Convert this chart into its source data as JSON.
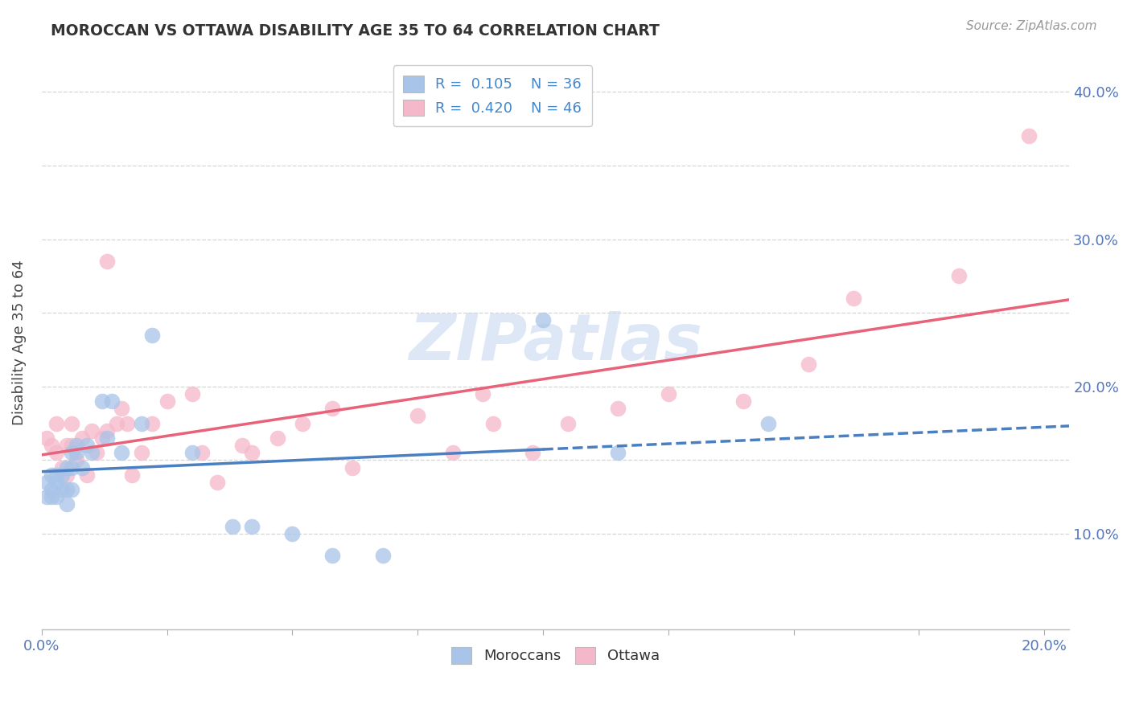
{
  "title": "MOROCCAN VS OTTAWA DISABILITY AGE 35 TO 64 CORRELATION CHART",
  "source": "Source: ZipAtlas.com",
  "ylabel": "Disability Age 35 to 64",
  "xlim": [
    0.0,
    0.205
  ],
  "ylim": [
    0.035,
    0.425
  ],
  "moroccan_R": 0.105,
  "moroccan_N": 36,
  "ottawa_R": 0.42,
  "ottawa_N": 46,
  "moroccan_color": "#a8c4e8",
  "ottawa_color": "#f5b8ca",
  "moroccan_line_color": "#4a7fc1",
  "ottawa_line_color": "#e8637a",
  "watermark_color": "#c8d8ef",
  "background_color": "#ffffff",
  "grid_color": "#d5d5d5",
  "axis_label_color": "#5577bb",
  "title_color": "#333333",
  "moroccan_x": [
    0.001,
    0.001,
    0.002,
    0.002,
    0.002,
    0.003,
    0.003,
    0.003,
    0.004,
    0.004,
    0.005,
    0.005,
    0.005,
    0.006,
    0.006,
    0.006,
    0.007,
    0.007,
    0.008,
    0.009,
    0.01,
    0.012,
    0.013,
    0.014,
    0.016,
    0.02,
    0.022,
    0.03,
    0.038,
    0.042,
    0.05,
    0.058,
    0.068,
    0.1,
    0.115,
    0.145
  ],
  "moroccan_y": [
    0.125,
    0.135,
    0.125,
    0.13,
    0.14,
    0.125,
    0.135,
    0.14,
    0.13,
    0.14,
    0.12,
    0.13,
    0.145,
    0.13,
    0.145,
    0.155,
    0.155,
    0.16,
    0.145,
    0.16,
    0.155,
    0.19,
    0.165,
    0.19,
    0.155,
    0.175,
    0.235,
    0.155,
    0.105,
    0.105,
    0.1,
    0.085,
    0.085,
    0.245,
    0.155,
    0.175
  ],
  "ottawa_x": [
    0.001,
    0.002,
    0.003,
    0.003,
    0.004,
    0.005,
    0.005,
    0.006,
    0.006,
    0.007,
    0.008,
    0.009,
    0.01,
    0.011,
    0.012,
    0.013,
    0.013,
    0.015,
    0.016,
    0.017,
    0.018,
    0.02,
    0.022,
    0.025,
    0.03,
    0.032,
    0.035,
    0.04,
    0.042,
    0.047,
    0.052,
    0.058,
    0.062,
    0.075,
    0.082,
    0.088,
    0.09,
    0.098,
    0.105,
    0.115,
    0.125,
    0.14,
    0.153,
    0.162,
    0.183,
    0.197
  ],
  "ottawa_y": [
    0.165,
    0.16,
    0.155,
    0.175,
    0.145,
    0.14,
    0.16,
    0.16,
    0.175,
    0.15,
    0.165,
    0.14,
    0.17,
    0.155,
    0.165,
    0.17,
    0.285,
    0.175,
    0.185,
    0.175,
    0.14,
    0.155,
    0.175,
    0.19,
    0.195,
    0.155,
    0.135,
    0.16,
    0.155,
    0.165,
    0.175,
    0.185,
    0.145,
    0.18,
    0.155,
    0.195,
    0.175,
    0.155,
    0.175,
    0.185,
    0.195,
    0.19,
    0.215,
    0.26,
    0.275,
    0.37
  ],
  "ytick_positions": [
    0.1,
    0.15,
    0.2,
    0.25,
    0.3,
    0.35,
    0.4
  ],
  "ytick_labels": [
    "10.0%",
    "",
    "20.0%",
    "",
    "30.0%",
    "",
    "40.0%"
  ],
  "xtick_positions": [
    0.0,
    0.025,
    0.05,
    0.075,
    0.1,
    0.125,
    0.15,
    0.175,
    0.2
  ],
  "xtick_labels": [
    "0.0%",
    "",
    "",
    "",
    "",
    "",
    "",
    "",
    "20.0%"
  ]
}
